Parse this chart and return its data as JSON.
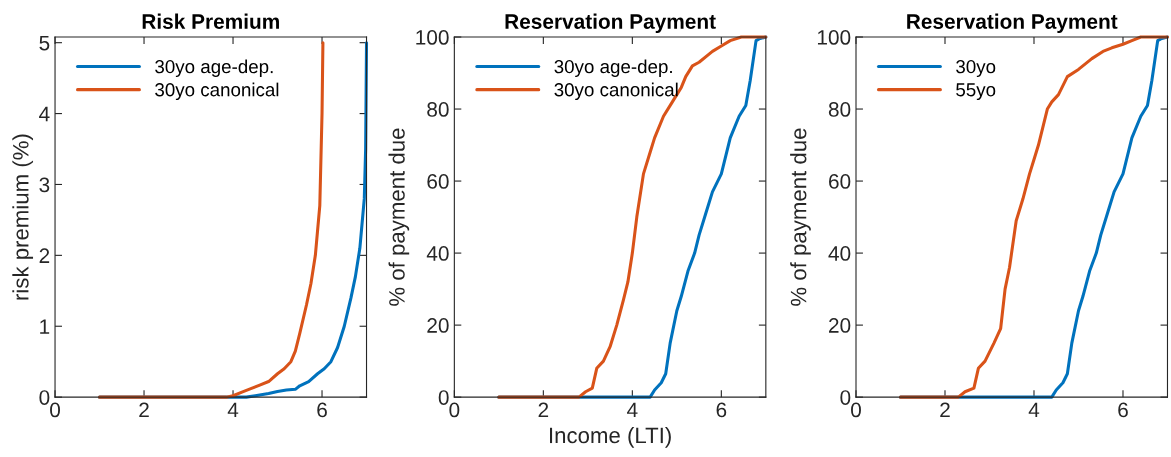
{
  "chart_data": [
    {
      "type": "line",
      "title": "Risk Premium",
      "ylabel": "risk premium (%)",
      "xlim": [
        0,
        7
      ],
      "ylim": [
        0,
        5.08
      ],
      "xticks": [
        0,
        2,
        4,
        6
      ],
      "yticks": [
        0,
        1,
        2,
        3,
        4,
        5
      ],
      "grid": false,
      "legend": "top left",
      "marker": "none",
      "line_style": "solid",
      "series": [
        {
          "name": "30yo age-dep.",
          "color": "#0072bd",
          "x": [
            1,
            4.3,
            4.5,
            4.8,
            5.0,
            5.2,
            5.4,
            5.5,
            5.7,
            5.9,
            6.05,
            6.2,
            6.35,
            6.5,
            6.65,
            6.75,
            6.85,
            6.95,
            6.98,
            7.0
          ],
          "values": [
            0,
            0,
            0.02,
            0.05,
            0.08,
            0.1,
            0.11,
            0.16,
            0.22,
            0.33,
            0.4,
            0.5,
            0.7,
            1.0,
            1.4,
            1.7,
            2.1,
            2.8,
            3.5,
            5.0
          ]
        },
        {
          "name": "30yo canonical",
          "color": "#d95319",
          "x": [
            1,
            3.85,
            4.0,
            4.2,
            4.4,
            4.6,
            4.8,
            5.0,
            5.15,
            5.3,
            5.4,
            5.5,
            5.65,
            5.75,
            5.85,
            5.95,
            6.0,
            6.02
          ],
          "values": [
            0,
            0,
            0.02,
            0.07,
            0.12,
            0.17,
            0.22,
            0.33,
            0.4,
            0.5,
            0.65,
            0.9,
            1.3,
            1.6,
            2.0,
            2.7,
            4.0,
            5.0
          ]
        }
      ]
    },
    {
      "type": "line",
      "title": "Reservation Payment",
      "xlabel": "Income (LTI)",
      "ylabel": "% of payment due",
      "xlim": [
        0,
        7
      ],
      "ylim": [
        0,
        100
      ],
      "xticks": [
        0,
        2,
        4,
        6
      ],
      "yticks": [
        0,
        20,
        40,
        60,
        80,
        100
      ],
      "grid": false,
      "legend": "top left",
      "marker": "none",
      "line_style": "solid",
      "series": [
        {
          "name": "30yo age-dep.",
          "color": "#0072bd",
          "x": [
            1,
            4.4,
            4.5,
            4.65,
            4.75,
            4.85,
            5.0,
            5.1,
            5.25,
            5.4,
            5.5,
            5.65,
            5.8,
            6.0,
            6.2,
            6.4,
            6.55,
            6.65,
            6.78,
            6.85,
            7.0
          ],
          "values": [
            0,
            0,
            2,
            4,
            6.5,
            15,
            24,
            28,
            35,
            40,
            45,
            51,
            57,
            62,
            72,
            78,
            81,
            88,
            99,
            99.5,
            100
          ]
        },
        {
          "name": "30yo canonical",
          "color": "#d95319",
          "x": [
            1,
            2.8,
            2.95,
            3.1,
            3.2,
            3.35,
            3.5,
            3.65,
            3.8,
            3.9,
            4.0,
            4.1,
            4.25,
            4.4,
            4.5,
            4.7,
            4.9,
            5.1,
            5.2,
            5.35,
            5.5,
            5.8,
            6.0,
            6.2,
            6.45,
            7.0
          ],
          "values": [
            0,
            0,
            1.5,
            2.5,
            8,
            10,
            14,
            20,
            27,
            32,
            40,
            50,
            62,
            68,
            72,
            78,
            82,
            86,
            89,
            92,
            93,
            96,
            97.5,
            99,
            100,
            100
          ]
        }
      ]
    },
    {
      "type": "line",
      "title": "Reservation Payment",
      "ylabel": "% of payment due",
      "xlim": [
        0,
        7
      ],
      "ylim": [
        0,
        100
      ],
      "xticks": [
        0,
        2,
        4,
        6
      ],
      "yticks": [
        0,
        20,
        40,
        60,
        80,
        100
      ],
      "grid": false,
      "legend": "top left",
      "marker": "none",
      "line_style": "solid",
      "series": [
        {
          "name": "30yo",
          "color": "#0072bd",
          "x": [
            1,
            4.4,
            4.5,
            4.65,
            4.75,
            4.85,
            5.0,
            5.1,
            5.25,
            5.4,
            5.5,
            5.65,
            5.8,
            6.0,
            6.2,
            6.4,
            6.55,
            6.65,
            6.78,
            6.85,
            7.0
          ],
          "values": [
            0,
            0,
            2,
            4,
            6.5,
            15,
            24,
            28,
            35,
            40,
            45,
            51,
            57,
            62,
            72,
            78,
            81,
            88,
            99,
            99.5,
            100
          ]
        },
        {
          "name": "55yo",
          "color": "#d95319",
          "x": [
            1,
            2.3,
            2.45,
            2.65,
            2.75,
            2.9,
            3.1,
            3.25,
            3.35,
            3.45,
            3.6,
            3.75,
            3.9,
            4.0,
            4.1,
            4.3,
            4.4,
            4.55,
            4.75,
            5.0,
            5.3,
            5.55,
            5.75,
            6.0,
            6.2,
            6.4,
            7.0
          ],
          "values": [
            0,
            0,
            1.5,
            2.5,
            8,
            10,
            15,
            19,
            30,
            36,
            49,
            55,
            62,
            66,
            70,
            80,
            82,
            84,
            89,
            91,
            94,
            96,
            97,
            98,
            99,
            100,
            100
          ]
        }
      ]
    }
  ]
}
